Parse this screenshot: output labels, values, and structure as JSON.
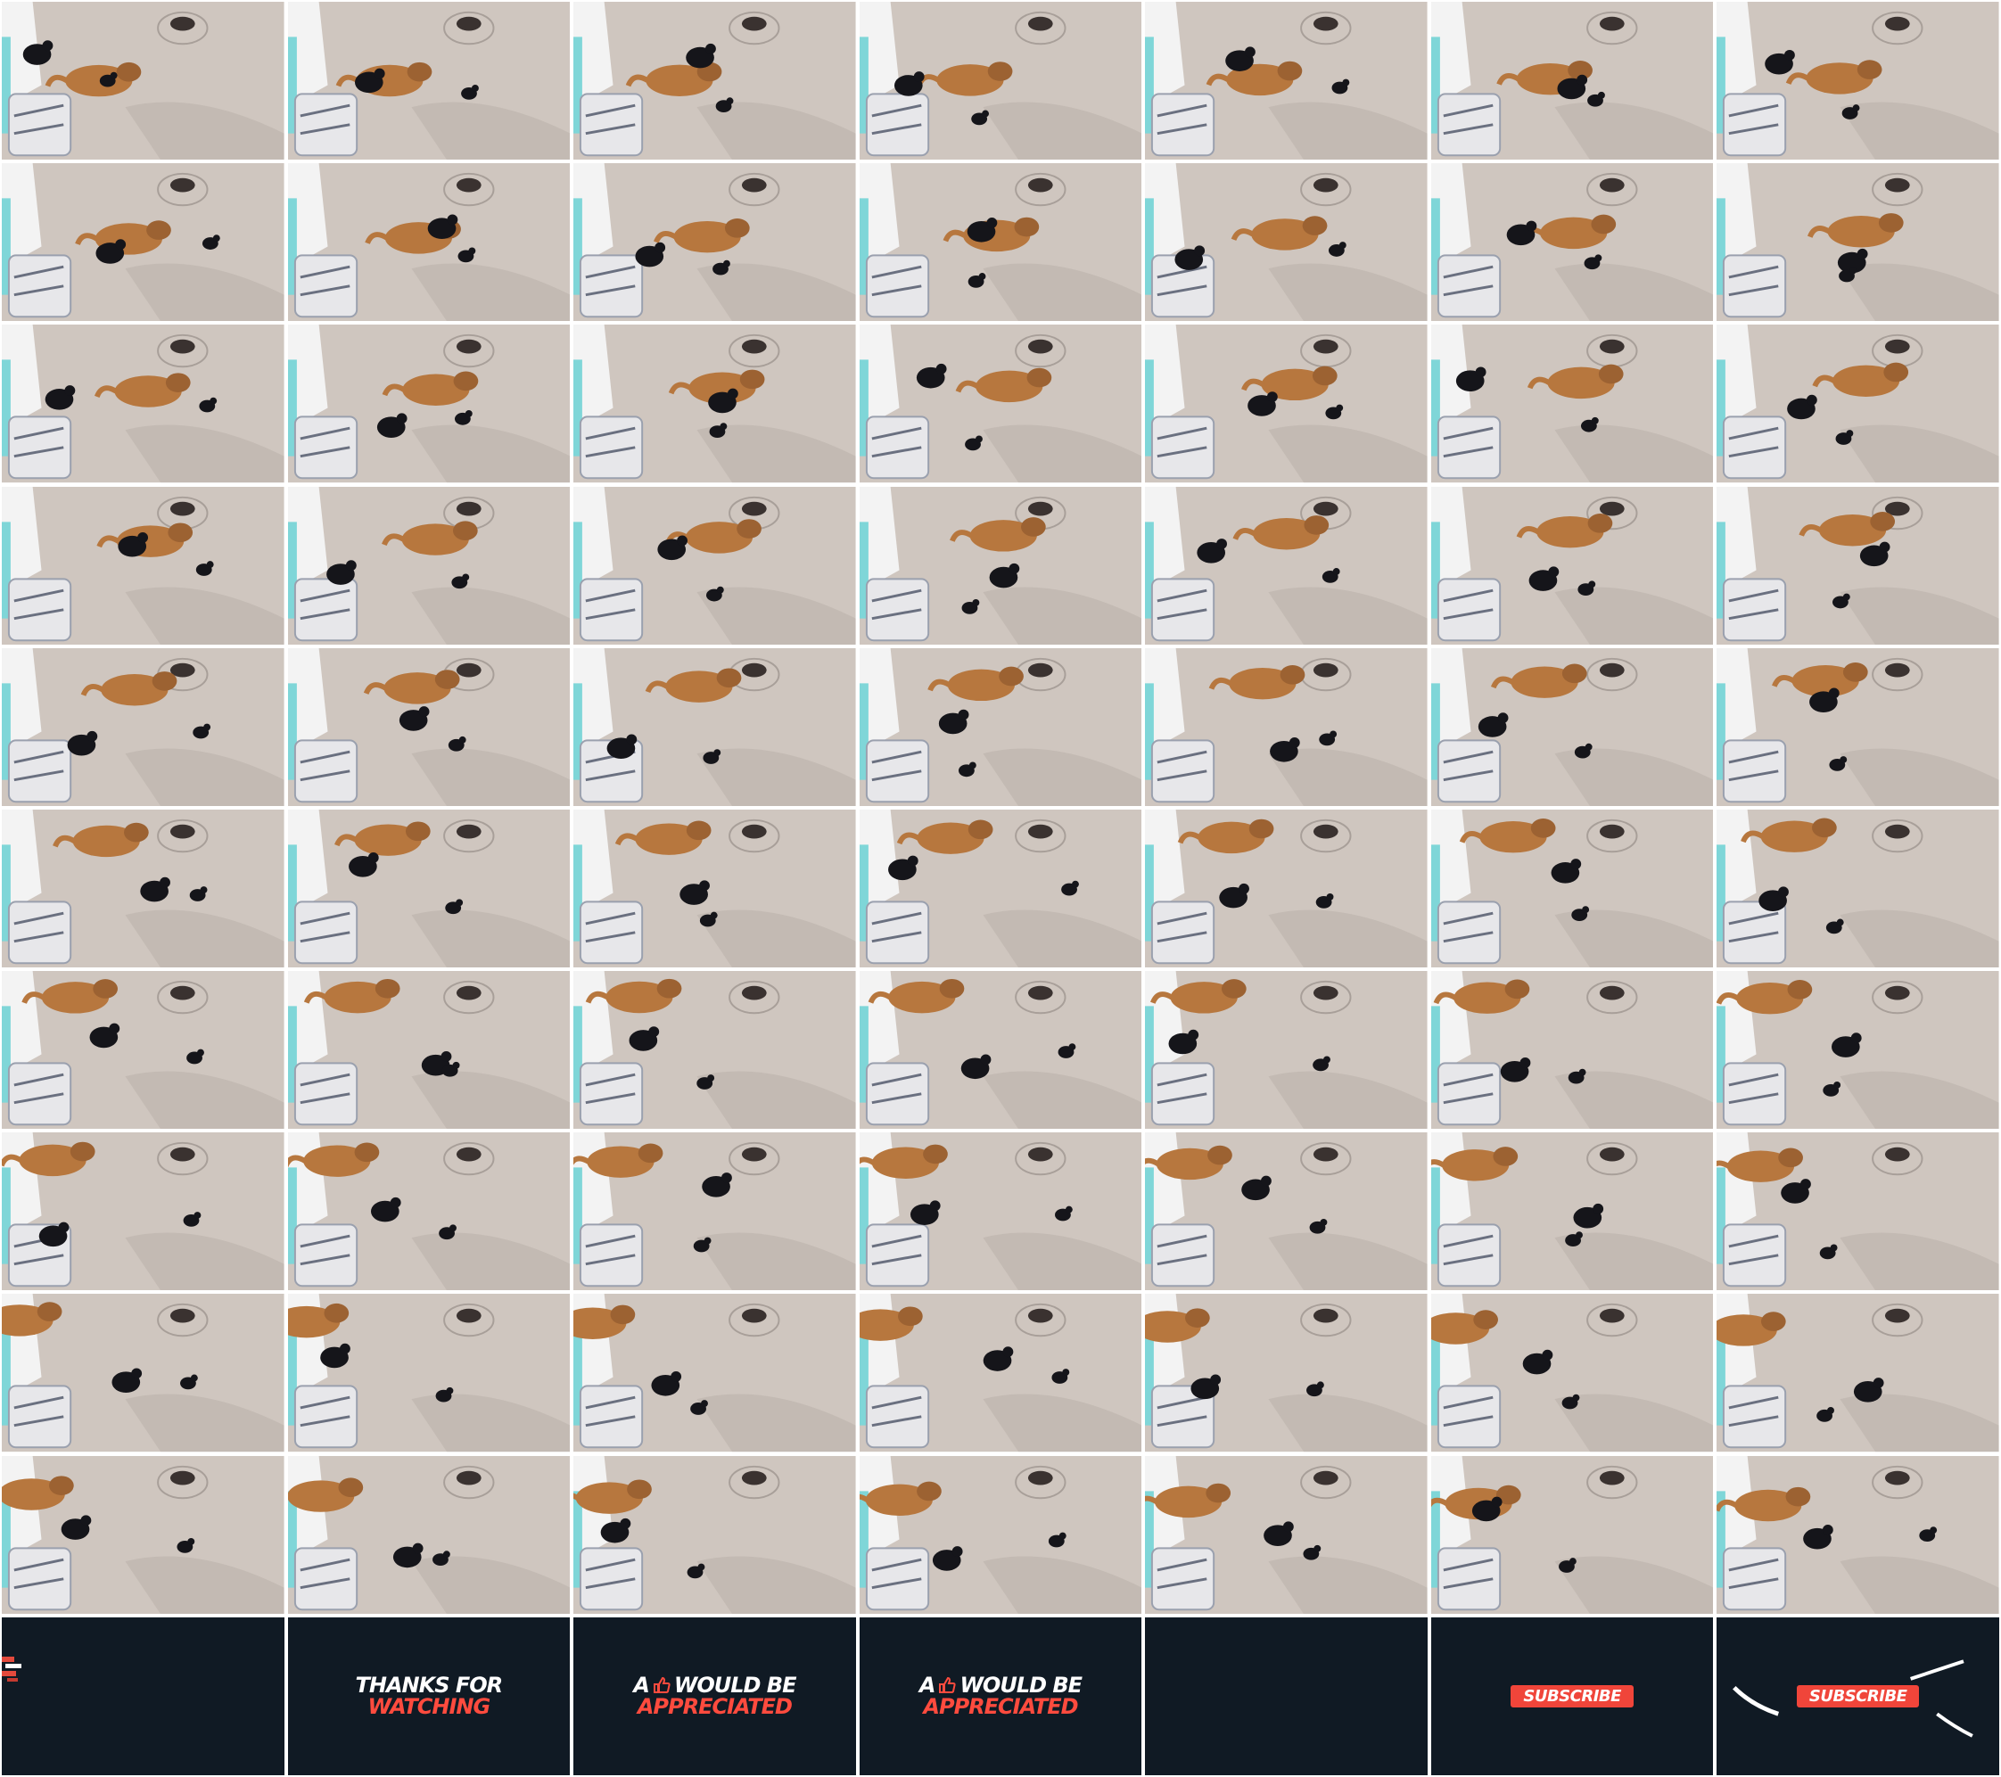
{
  "grid": {
    "columns": 7,
    "rows": 11,
    "scene_rows": 10
  },
  "colors": {
    "ground": "#cfc6bf",
    "dog": "#b7773e",
    "cat": "#15151a",
    "outro_bg": "#101a24",
    "accent": "#ff4b3e",
    "button": "#f0453a",
    "wall": "#f3f3f3",
    "door": "#7fd6d8"
  },
  "scene": {
    "subject": "dog-and-cats"
  },
  "outro": {
    "thanks_line1": "THANKS FOR",
    "thanks_line2": "WATCHING",
    "appreciate_prefix": "A",
    "appreciate_mid": "WOULD BE",
    "appreciate_line2": "APPRECIATED",
    "subscribe": "SUBSCRIBE",
    "thumb_icon": "thumbs-up-icon"
  }
}
